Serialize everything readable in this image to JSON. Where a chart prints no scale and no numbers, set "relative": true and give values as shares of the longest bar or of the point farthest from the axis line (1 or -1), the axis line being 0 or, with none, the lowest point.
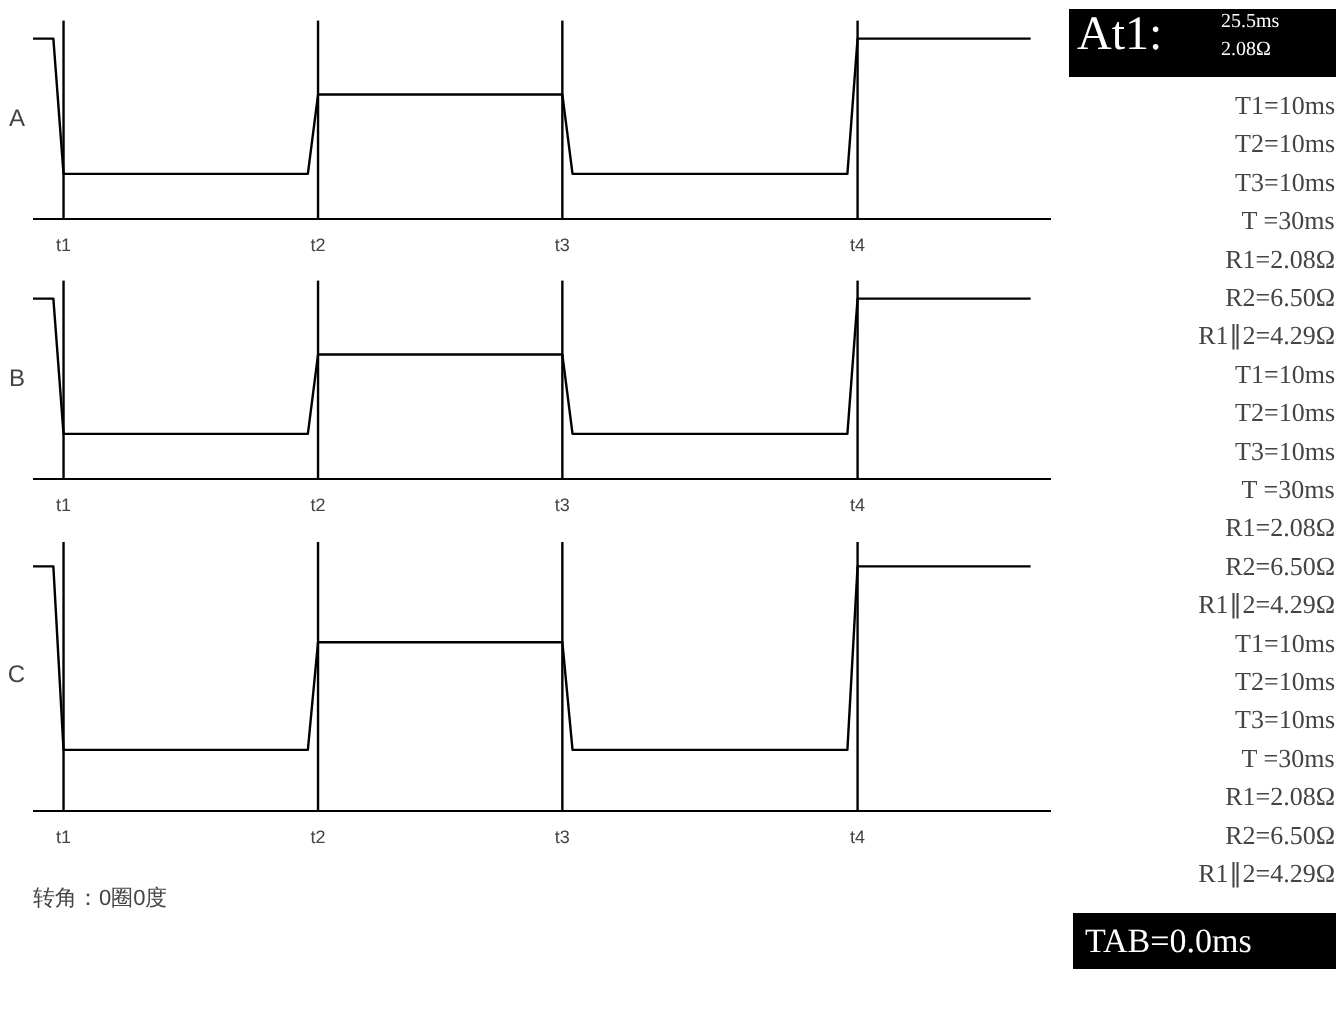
{
  "chart_data": [
    {
      "type": "line",
      "ylabel": "A",
      "relative": true,
      "tick_labels": "x",
      "grid": false,
      "categories": [
        null,
        null,
        null,
        "t1",
        null,
        null,
        null,
        null,
        null,
        null,
        null,
        null,
        null,
        null,
        null,
        null,
        null,
        null,
        null,
        null,
        null,
        null,
        null,
        null,
        null,
        null,
        null,
        null,
        "t2",
        null,
        null,
        null,
        null,
        null,
        null,
        null,
        null,
        null,
        null,
        null,
        null,
        null,
        null,
        null,
        null,
        null,
        null,
        null,
        null,
        null,
        null,
        null,
        "t3",
        null,
        null,
        null,
        null,
        null,
        null,
        null,
        null,
        null,
        null,
        null,
        null,
        null,
        null,
        null,
        null,
        null,
        null,
        null,
        null,
        null,
        null,
        null,
        null,
        null,
        null,
        null,
        null,
        "t4",
        null,
        null,
        null,
        null,
        null,
        null,
        null,
        null,
        null,
        null,
        null,
        null,
        null,
        null,
        null,
        null,
        null
      ],
      "series": [
        {
          "color": "#000000",
          "values": [
            1,
            1,
            1,
            0.25,
            0.25,
            0.25,
            0.25,
            0.25,
            0.25,
            0.25,
            0.25,
            0.25,
            0.25,
            0.25,
            0.25,
            0.25,
            0.25,
            0.25,
            0.25,
            0.25,
            0.25,
            0.25,
            0.25,
            0.25,
            0.25,
            0.25,
            0.25,
            0.25,
            0.69,
            0.69,
            0.69,
            0.69,
            0.69,
            0.69,
            0.69,
            0.69,
            0.69,
            0.69,
            0.69,
            0.69,
            0.69,
            0.69,
            0.69,
            0.69,
            0.69,
            0.69,
            0.69,
            0.69,
            0.69,
            0.69,
            0.69,
            0.69,
            0.69,
            0.25,
            0.25,
            0.25,
            0.25,
            0.25,
            0.25,
            0.25,
            0.25,
            0.25,
            0.25,
            0.25,
            0.25,
            0.25,
            0.25,
            0.25,
            0.25,
            0.25,
            0.25,
            0.25,
            0.25,
            0.25,
            0.25,
            0.25,
            0.25,
            0.25,
            0.25,
            0.25,
            0.25,
            1,
            1,
            1,
            1,
            1,
            1,
            1,
            1,
            1,
            1,
            1,
            1,
            1,
            1,
            1,
            1,
            1,
            1
          ]
        }
      ],
      "ref_lines": [
        {
          "axis": "x",
          "value": "t1"
        },
        {
          "axis": "x",
          "value": "t2"
        },
        {
          "axis": "x",
          "value": "t3"
        },
        {
          "axis": "x",
          "value": "t4"
        }
      ]
    },
    {
      "type": "line",
      "ylabel": "B",
      "relative": true,
      "tick_labels": "x",
      "grid": false,
      "categories": [
        null,
        null,
        null,
        "t1",
        null,
        null,
        null,
        null,
        null,
        null,
        null,
        null,
        null,
        null,
        null,
        null,
        null,
        null,
        null,
        null,
        null,
        null,
        null,
        null,
        null,
        null,
        null,
        null,
        "t2",
        null,
        null,
        null,
        null,
        null,
        null,
        null,
        null,
        null,
        null,
        null,
        null,
        null,
        null,
        null,
        null,
        null,
        null,
        null,
        null,
        null,
        null,
        null,
        "t3",
        null,
        null,
        null,
        null,
        null,
        null,
        null,
        null,
        null,
        null,
        null,
        null,
        null,
        null,
        null,
        null,
        null,
        null,
        null,
        null,
        null,
        null,
        null,
        null,
        null,
        null,
        null,
        null,
        "t4",
        null,
        null,
        null,
        null,
        null,
        null,
        null,
        null,
        null,
        null,
        null,
        null,
        null,
        null,
        null,
        null,
        null
      ],
      "series": [
        {
          "color": "#000000",
          "values": [
            1,
            1,
            1,
            0.25,
            0.25,
            0.25,
            0.25,
            0.25,
            0.25,
            0.25,
            0.25,
            0.25,
            0.25,
            0.25,
            0.25,
            0.25,
            0.25,
            0.25,
            0.25,
            0.25,
            0.25,
            0.25,
            0.25,
            0.25,
            0.25,
            0.25,
            0.25,
            0.25,
            0.69,
            0.69,
            0.69,
            0.69,
            0.69,
            0.69,
            0.69,
            0.69,
            0.69,
            0.69,
            0.69,
            0.69,
            0.69,
            0.69,
            0.69,
            0.69,
            0.69,
            0.69,
            0.69,
            0.69,
            0.69,
            0.69,
            0.69,
            0.69,
            0.69,
            0.25,
            0.25,
            0.25,
            0.25,
            0.25,
            0.25,
            0.25,
            0.25,
            0.25,
            0.25,
            0.25,
            0.25,
            0.25,
            0.25,
            0.25,
            0.25,
            0.25,
            0.25,
            0.25,
            0.25,
            0.25,
            0.25,
            0.25,
            0.25,
            0.25,
            0.25,
            0.25,
            0.25,
            1,
            1,
            1,
            1,
            1,
            1,
            1,
            1,
            1,
            1,
            1,
            1,
            1,
            1,
            1,
            1,
            1,
            1
          ]
        }
      ],
      "ref_lines": [
        {
          "axis": "x",
          "value": "t1"
        },
        {
          "axis": "x",
          "value": "t2"
        },
        {
          "axis": "x",
          "value": "t3"
        },
        {
          "axis": "x",
          "value": "t4"
        }
      ]
    },
    {
      "type": "line",
      "ylabel": "C",
      "relative": true,
      "tick_labels": "x",
      "grid": false,
      "categories": [
        null,
        null,
        null,
        "t1",
        null,
        null,
        null,
        null,
        null,
        null,
        null,
        null,
        null,
        null,
        null,
        null,
        null,
        null,
        null,
        null,
        null,
        null,
        null,
        null,
        null,
        null,
        null,
        null,
        "t2",
        null,
        null,
        null,
        null,
        null,
        null,
        null,
        null,
        null,
        null,
        null,
        null,
        null,
        null,
        null,
        null,
        null,
        null,
        null,
        null,
        null,
        null,
        null,
        "t3",
        null,
        null,
        null,
        null,
        null,
        null,
        null,
        null,
        null,
        null,
        null,
        null,
        null,
        null,
        null,
        null,
        null,
        null,
        null,
        null,
        null,
        null,
        null,
        null,
        null,
        null,
        null,
        null,
        "t4",
        null,
        null,
        null,
        null,
        null,
        null,
        null,
        null,
        null,
        null,
        null,
        null,
        null,
        null,
        null,
        null,
        null
      ],
      "series": [
        {
          "color": "#000000",
          "values": [
            1,
            1,
            1,
            0.25,
            0.25,
            0.25,
            0.25,
            0.25,
            0.25,
            0.25,
            0.25,
            0.25,
            0.25,
            0.25,
            0.25,
            0.25,
            0.25,
            0.25,
            0.25,
            0.25,
            0.25,
            0.25,
            0.25,
            0.25,
            0.25,
            0.25,
            0.25,
            0.25,
            0.69,
            0.69,
            0.69,
            0.69,
            0.69,
            0.69,
            0.69,
            0.69,
            0.69,
            0.69,
            0.69,
            0.69,
            0.69,
            0.69,
            0.69,
            0.69,
            0.69,
            0.69,
            0.69,
            0.69,
            0.69,
            0.69,
            0.69,
            0.69,
            0.69,
            0.25,
            0.25,
            0.25,
            0.25,
            0.25,
            0.25,
            0.25,
            0.25,
            0.25,
            0.25,
            0.25,
            0.25,
            0.25,
            0.25,
            0.25,
            0.25,
            0.25,
            0.25,
            0.25,
            0.25,
            0.25,
            0.25,
            0.25,
            0.25,
            0.25,
            0.25,
            0.25,
            0.25,
            1,
            1,
            1,
            1,
            1,
            1,
            1,
            1,
            1,
            1,
            1,
            1,
            1,
            1,
            1,
            1,
            1,
            1
          ]
        }
      ],
      "ref_lines": [
        {
          "axis": "x",
          "value": "t1"
        },
        {
          "axis": "x",
          "value": "t2"
        },
        {
          "axis": "x",
          "value": "t3"
        },
        {
          "axis": "x",
          "value": "t4"
        }
      ],
      "annotations": [
        "转角：0圈0度"
      ]
    },
    {
      "type": "other",
      "annotations": [
        "At1:",
        "25.5ms",
        "2.08Ω",
        "T1=10ms",
        "T2=10ms",
        "T3=10ms",
        "T =30ms",
        "R1=2.08Ω",
        "R2=6.50Ω",
        "R1∥2=4.29Ω",
        "T1=10ms",
        "T2=10ms",
        "T3=10ms",
        "T =30ms",
        "R1=2.08Ω",
        "R2=6.50Ω",
        "R1∥2=4.29Ω",
        "T1=10ms",
        "T2=10ms",
        "T3=10ms",
        "T =30ms",
        "R1=2.08Ω",
        "R2=6.50Ω",
        "R1∥2=4.29Ω",
        "TAB=0.0ms"
      ]
    }
  ]
}
